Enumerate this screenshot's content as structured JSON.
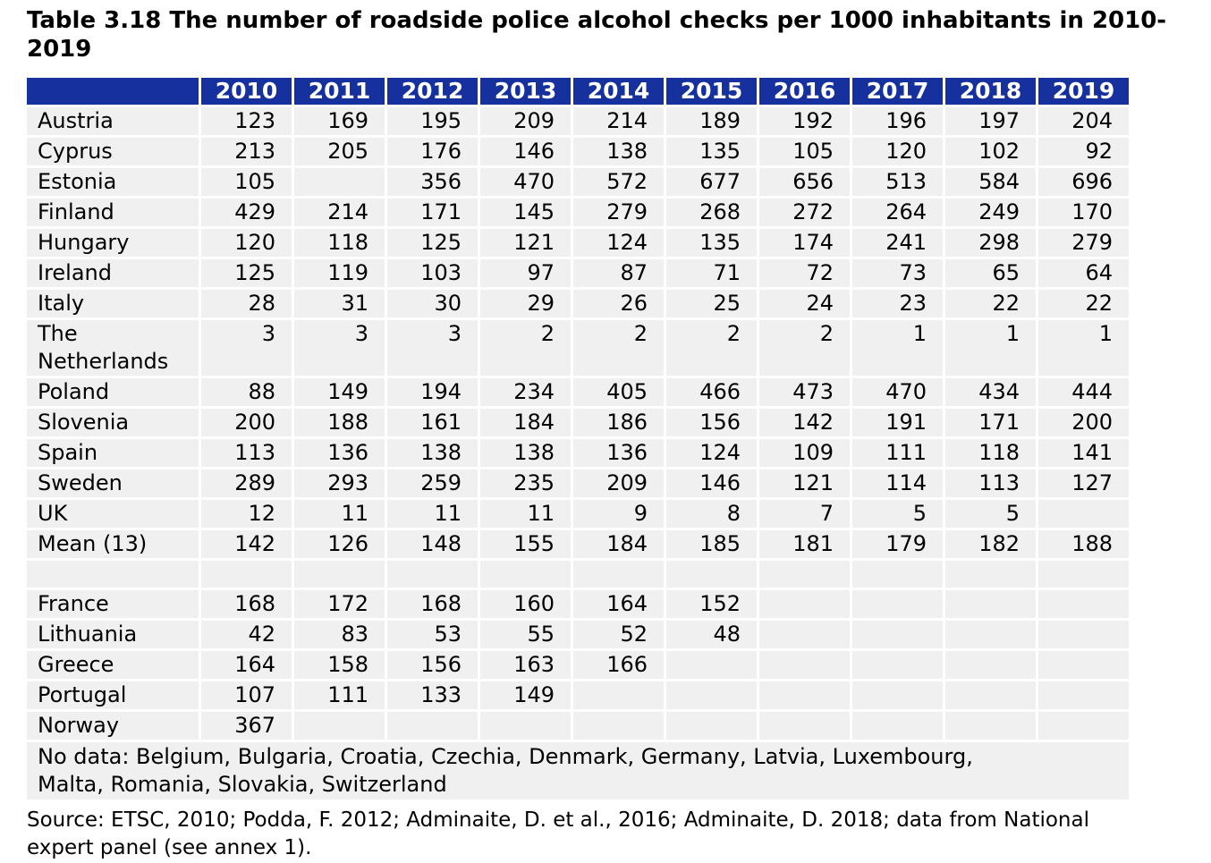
{
  "title": {
    "line1": "Table 3.18 The number of roadside police alcohol checks per 1000 inhabitants in 2010-",
    "line2": "2019"
  },
  "colors": {
    "header_bg": "#16309e",
    "header_text": "#ffffff",
    "row_bg": "#f0f0f0",
    "text": "#000000"
  },
  "table": {
    "year_headers": [
      "2010",
      "2011",
      "2012",
      "2013",
      "2014",
      "2015",
      "2016",
      "2017",
      "2018",
      "2019"
    ],
    "rows": [
      {
        "label": "Austria",
        "values": [
          "123",
          "169",
          "195",
          "209",
          "214",
          "189",
          "192",
          "196",
          "197",
          "204"
        ]
      },
      {
        "label": "Cyprus",
        "values": [
          "213",
          "205",
          "176",
          "146",
          "138",
          "135",
          "105",
          "120",
          "102",
          "92"
        ]
      },
      {
        "label": "Estonia",
        "values": [
          "105",
          "",
          "356",
          "470",
          "572",
          "677",
          "656",
          "513",
          "584",
          "696"
        ]
      },
      {
        "label": "Finland",
        "values": [
          "429",
          "214",
          "171",
          "145",
          "279",
          "268",
          "272",
          "264",
          "249",
          "170"
        ]
      },
      {
        "label": "Hungary",
        "values": [
          "120",
          "118",
          "125",
          "121",
          "124",
          "135",
          "174",
          "241",
          "298",
          "279"
        ]
      },
      {
        "label": "Ireland",
        "values": [
          "125",
          "119",
          "103",
          "97",
          "87",
          "71",
          "72",
          "73",
          "65",
          "64"
        ]
      },
      {
        "label": "Italy",
        "values": [
          "28",
          "31",
          "30",
          "29",
          "26",
          "25",
          "24",
          "23",
          "22",
          "22"
        ]
      },
      {
        "label": "The Netherlands",
        "values": [
          "3",
          "3",
          "3",
          "2",
          "2",
          "2",
          "2",
          "1",
          "1",
          "1"
        ]
      },
      {
        "label": "Poland",
        "values": [
          "88",
          "149",
          "194",
          "234",
          "405",
          "466",
          "473",
          "470",
          "434",
          "444"
        ]
      },
      {
        "label": "Slovenia",
        "values": [
          "200",
          "188",
          "161",
          "184",
          "186",
          "156",
          "142",
          "191",
          "171",
          "200"
        ]
      },
      {
        "label": "Spain",
        "values": [
          "113",
          "136",
          "138",
          "138",
          "136",
          "124",
          "109",
          "111",
          "118",
          "141"
        ]
      },
      {
        "label": "Sweden",
        "values": [
          "289",
          "293",
          "259",
          "235",
          "209",
          "146",
          "121",
          "114",
          "113",
          "127"
        ]
      },
      {
        "label": "UK",
        "values": [
          "12",
          "11",
          "11",
          "11",
          "9",
          "8",
          "7",
          "5",
          "5",
          ""
        ]
      },
      {
        "label": "Mean (13)",
        "values": [
          "142",
          "126",
          "148",
          "155",
          "184",
          "185",
          "181",
          "179",
          "182",
          "188"
        ]
      },
      {
        "label": "",
        "values": [
          "",
          "",
          "",
          "",
          "",
          "",
          "",
          "",
          "",
          ""
        ]
      },
      {
        "label": "France",
        "values": [
          "168",
          "172",
          "168",
          "160",
          "164",
          "152",
          "",
          "",
          "",
          ""
        ]
      },
      {
        "label": "Lithuania",
        "values": [
          "42",
          "83",
          "53",
          "55",
          "52",
          "48",
          "",
          "",
          "",
          ""
        ]
      },
      {
        "label": "Greece",
        "values": [
          "164",
          "158",
          "156",
          "163",
          "166",
          "",
          "",
          "",
          "",
          ""
        ]
      },
      {
        "label": "Portugal",
        "values": [
          "107",
          "111",
          "133",
          "149",
          "",
          "",
          "",
          "",
          "",
          ""
        ]
      },
      {
        "label": "Norway",
        "values": [
          "367",
          "",
          "",
          "",
          "",
          "",
          "",
          "",
          "",
          ""
        ]
      }
    ],
    "no_data": {
      "line1": "No data: Belgium, Bulgaria, Croatia, Czechia, Denmark, Germany, Latvia, Luxembourg,",
      "line2": "Malta, Romania, Slovakia, Switzerland"
    }
  },
  "source": {
    "line1": "Source: ETSC, 2010; Podda, F. 2012; Adminaite, D. et al., 2016; Adminaite, D. 2018; data from National",
    "line2": "expert panel (see annex 1)."
  }
}
